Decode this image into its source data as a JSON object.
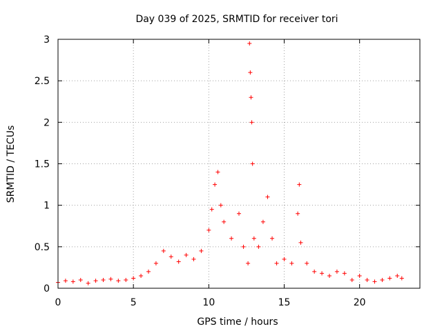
{
  "chart_data": {
    "type": "scatter",
    "title": "Day 039 of 2025, SRMTID for receiver tori",
    "xlabel": "GPS time / hours",
    "ylabel": "SRMTID / TECUs",
    "xlim": [
      0,
      24
    ],
    "ylim": [
      0,
      3
    ],
    "x_ticks": [
      "0",
      "5",
      "10",
      "15",
      "20"
    ],
    "y_ticks": [
      "0",
      "0.5",
      "1",
      "1.5",
      "2",
      "2.5",
      "3"
    ],
    "grid": true,
    "marker": "+",
    "colors": {
      "series": "#ff0000",
      "grid": "#a0a0a0",
      "axes": "#000000"
    },
    "series": [
      {
        "name": "tori",
        "x": [
          0,
          0.5,
          1,
          1.5,
          2,
          2.5,
          3,
          3.5,
          4,
          4.5,
          5,
          5.5,
          6,
          6.5,
          7,
          7.5,
          8,
          8.5,
          9,
          9.5,
          10,
          10.2,
          10.4,
          10.6,
          10.8,
          11,
          11.5,
          12,
          12.3,
          12.6,
          12.7,
          12.75,
          12.8,
          12.85,
          12.9,
          13,
          13.3,
          13.6,
          13.9,
          14.2,
          14.5,
          15,
          15.5,
          15.9,
          16,
          16.1,
          16.5,
          17,
          17.5,
          18,
          18.5,
          19,
          19.5,
          20,
          20.5,
          21,
          21.5,
          22,
          22.5,
          22.8
        ],
        "y": [
          0.07,
          0.09,
          0.08,
          0.1,
          0.06,
          0.09,
          0.1,
          0.11,
          0.09,
          0.1,
          0.12,
          0.15,
          0.2,
          0.3,
          0.45,
          0.38,
          0.32,
          0.4,
          0.35,
          0.45,
          0.7,
          0.95,
          1.25,
          1.4,
          1.0,
          0.8,
          0.6,
          0.9,
          0.5,
          0.3,
          2.95,
          2.6,
          2.3,
          2.0,
          1.5,
          0.6,
          0.5,
          0.8,
          1.1,
          0.6,
          0.3,
          0.35,
          0.3,
          0.9,
          1.25,
          0.55,
          0.3,
          0.2,
          0.18,
          0.15,
          0.2,
          0.18,
          0.1,
          0.15,
          0.1,
          0.08,
          0.1,
          0.12,
          0.15,
          0.12
        ]
      }
    ]
  }
}
